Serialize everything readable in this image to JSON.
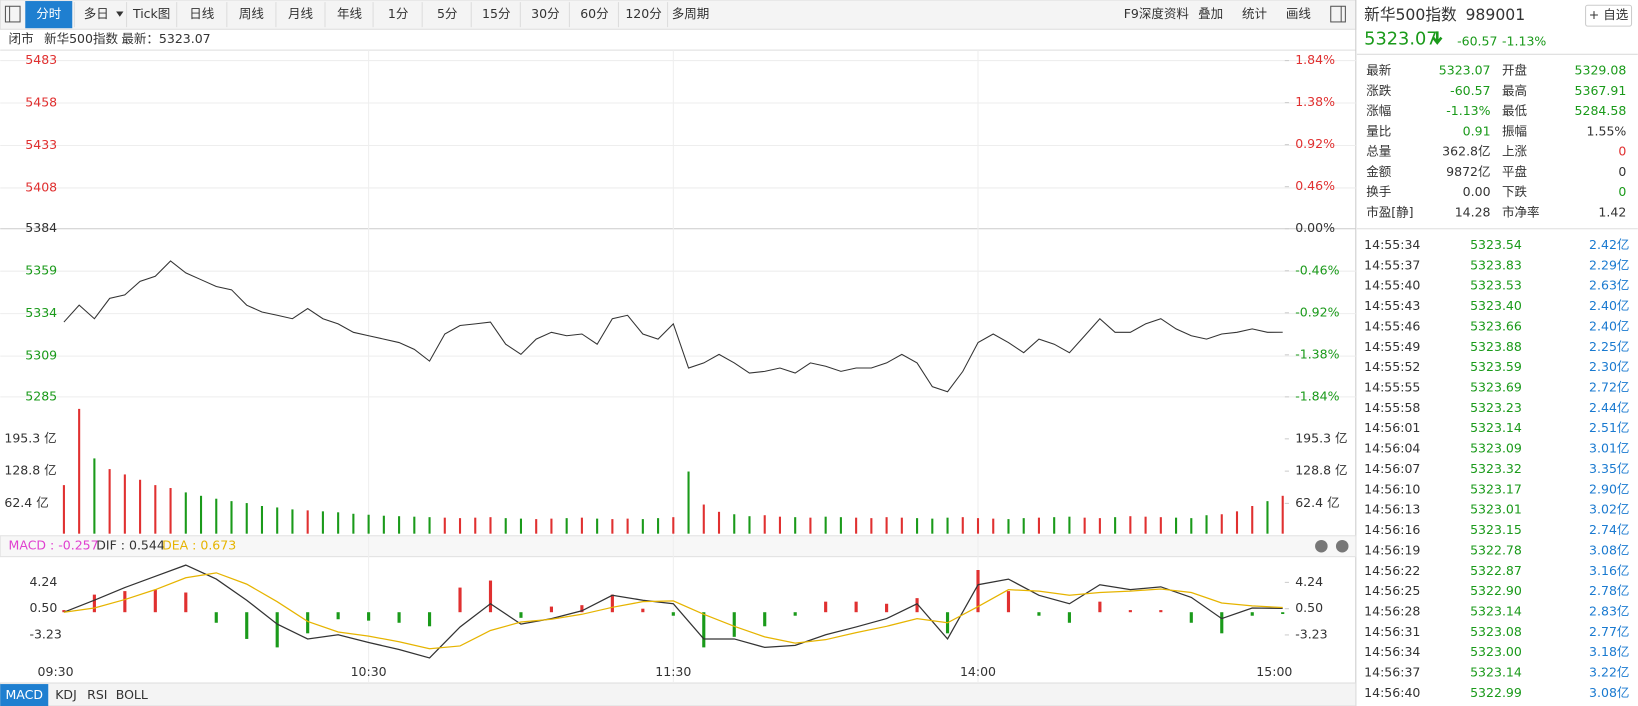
{
  "toolbar": {
    "tabs": [
      "分时",
      "多日",
      "Tick图",
      "日线",
      "周线",
      "月线",
      "年线",
      "1分",
      "5分",
      "15分",
      "30分",
      "60分",
      "120分",
      "多周期"
    ],
    "tools": [
      "F9深度资料",
      "叠加",
      "统计",
      "画线"
    ]
  },
  "status_bar": {
    "state": "闭市",
    "name": "新华500指数",
    "latest": "最新：5323.07"
  },
  "chart_data": [
    {
      "type": "line",
      "color": "#333333",
      "grid": true,
      "x": [
        0,
        3,
        6,
        9,
        12,
        15,
        18,
        21,
        24,
        27,
        30,
        33,
        36,
        39,
        42,
        45,
        48,
        51,
        54,
        57,
        60,
        63,
        66,
        69,
        72,
        75,
        78,
        81,
        84,
        87,
        90,
        93,
        96,
        99,
        102,
        105,
        108,
        111,
        114,
        117,
        120,
        123,
        126,
        129,
        132,
        135,
        138,
        141,
        144,
        147,
        150,
        153,
        156,
        159,
        162,
        165,
        168,
        171,
        174,
        177,
        180,
        183,
        186,
        189,
        192,
        195,
        198,
        201,
        204,
        207,
        210,
        213,
        216,
        219,
        222,
        225,
        228,
        231,
        234,
        237,
        240
      ],
      "values": [
        5329,
        5339,
        5331,
        5343,
        5345,
        5353,
        5356,
        5365,
        5358,
        5354,
        5350,
        5348,
        5339,
        5335,
        5333,
        5331,
        5337,
        5331,
        5328,
        5323,
        5321,
        5319,
        5317,
        5313,
        5306,
        5322,
        5327,
        5328,
        5329,
        5316,
        5310,
        5319,
        5323,
        5321,
        5322,
        5316,
        5331,
        5333,
        5322,
        5319,
        5328,
        5302,
        5305,
        5310,
        5305,
        5299,
        5300,
        5302,
        5299,
        5305,
        5303,
        5300,
        5302,
        5302,
        5305,
        5310,
        5305,
        5291,
        5288,
        5300,
        5317,
        5322,
        5317,
        5311,
        5319,
        5316,
        5311,
        5321,
        5331,
        5323,
        5323,
        5328,
        5331,
        5325,
        5321,
        5319,
        5322,
        5323,
        5325,
        5323,
        5323.07
      ],
      "xlim": [
        0,
        240
      ],
      "ylim": [
        5285,
        5483
      ],
      "yticks": [
        5285,
        5309,
        5334,
        5359,
        5384,
        5408,
        5433,
        5458,
        5483
      ],
      "y2lim": [
        -1.84,
        1.84
      ],
      "y2ticks": [
        {
          "value": -1.84,
          "label": "-1.84%"
        },
        {
          "value": -1.38,
          "label": "-1.38%"
        },
        {
          "value": -0.92,
          "label": "-0.92%"
        },
        {
          "value": -0.46,
          "label": "-0.46%"
        },
        {
          "value": 0,
          "label": "0.00%"
        },
        {
          "value": 0.46,
          "label": "0.46%"
        },
        {
          "value": 0.92,
          "label": "0.92%"
        },
        {
          "value": 1.38,
          "label": "1.38%"
        },
        {
          "value": 1.84,
          "label": "1.84%"
        }
      ]
    },
    {
      "type": "bar",
      "x": [
        0,
        3,
        6,
        9,
        12,
        15,
        18,
        21,
        24,
        27,
        30,
        33,
        36,
        39,
        42,
        45,
        48,
        51,
        54,
        57,
        60,
        63,
        66,
        69,
        72,
        75,
        78,
        81,
        84,
        87,
        90,
        93,
        96,
        99,
        102,
        105,
        108,
        111,
        114,
        117,
        120,
        123,
        126,
        129,
        132,
        135,
        138,
        141,
        144,
        147,
        150,
        153,
        156,
        159,
        162,
        165,
        168,
        171,
        174,
        177,
        180,
        183,
        186,
        189,
        192,
        195,
        198,
        201,
        204,
        207,
        210,
        213,
        216,
        219,
        222,
        225,
        228,
        231,
        234,
        237,
        240
      ],
      "values": [
        100,
        257,
        155,
        133,
        122,
        111,
        100,
        94,
        85,
        78,
        72,
        67,
        63,
        57,
        54,
        50,
        48,
        46,
        44,
        41,
        39,
        37,
        36,
        35,
        34,
        33,
        32,
        33,
        34,
        32,
        31,
        30,
        31,
        32,
        33,
        31,
        30,
        31,
        30,
        32,
        34,
        128,
        60,
        45,
        40,
        36,
        38,
        35,
        34,
        33,
        35,
        34,
        33,
        32,
        34,
        33,
        32,
        31,
        33,
        34,
        32,
        31,
        30,
        32,
        33,
        34,
        35,
        33,
        32,
        34,
        36,
        35,
        34,
        33,
        32,
        38,
        40,
        46,
        57,
        67,
        78
      ],
      "xlim": [
        0,
        240
      ],
      "ylim": [
        0,
        271
      ],
      "yticks": [
        {
          "value": 62.4,
          "label": "62.4 亿"
        },
        {
          "value": 128.8,
          "label": "128.8 亿"
        },
        {
          "value": 195.3,
          "label": "195.3 亿"
        }
      ]
    },
    {
      "type": "macd",
      "x": [
        0,
        6,
        12,
        18,
        24,
        30,
        36,
        42,
        48,
        54,
        60,
        66,
        72,
        78,
        84,
        90,
        96,
        102,
        108,
        114,
        120,
        126,
        132,
        138,
        144,
        150,
        156,
        162,
        168,
        174,
        180,
        186,
        192,
        198,
        204,
        210,
        216,
        222,
        228,
        234,
        240
      ],
      "series": [
        {
          "name": "MACD : -0.257",
          "color": "#e040d0",
          "values": [
            0.3,
            2.5,
            3.0,
            3.2,
            2.8,
            -1.5,
            -3.8,
            -5.0,
            -3.0,
            -1.0,
            -1.2,
            -1.5,
            -2.0,
            3.5,
            4.5,
            -0.8,
            0.8,
            1.0,
            2.5,
            0.5,
            -0.5,
            -5.0,
            -3.5,
            -2.0,
            -0.5,
            1.5,
            1.5,
            1.2,
            2.0,
            -3.0,
            6.0,
            3.0,
            -0.5,
            -1.5,
            1.5,
            0.3,
            0.3,
            -1.5,
            -3.0,
            -0.5,
            -0.257
          ]
        },
        {
          "name": "DIF : 0.544",
          "color": "#333333",
          "values": [
            0,
            1.7,
            3.5,
            5.1,
            6.7,
            4.7,
            1.7,
            -1.7,
            -3.8,
            -3.2,
            -4.3,
            -5.3,
            -6.5,
            -2.1,
            1.2,
            -1.7,
            -0.9,
            0.2,
            2.4,
            1.7,
            1.2,
            -3.8,
            -3.8,
            -5.0,
            -4.7,
            -3.2,
            -2.1,
            -0.9,
            1.2,
            -3.8,
            3.9,
            4.7,
            2.4,
            1.2,
            3.9,
            3.2,
            3.6,
            2.1,
            -0.9,
            0.6,
            0.544
          ]
        },
        {
          "name": "DEA : 0.673",
          "color": "#e6b400",
          "values": [
            0,
            0.6,
            1.8,
            3.2,
            4.9,
            5.6,
            4.0,
            1.5,
            -1.3,
            -2.8,
            -3.4,
            -4.2,
            -5.2,
            -4.8,
            -2.6,
            -1.4,
            -1.0,
            -0.3,
            0.7,
            1.5,
            1.6,
            -0.3,
            -2.0,
            -3.5,
            -4.4,
            -3.9,
            -2.9,
            -2.0,
            -0.9,
            -1.5,
            0.8,
            3.2,
            3.0,
            2.4,
            2.8,
            3.0,
            3.3,
            2.8,
            1.3,
            0.9,
            0.673
          ]
        }
      ],
      "xlim": [
        0,
        240
      ],
      "ylim": [
        -6.8,
        7.6
      ],
      "yticks": [
        -3.23,
        {
          "value": 0.5,
          "label": "0.50"
        },
        4.24
      ],
      "xticks": [
        {
          "value": 0,
          "label": "09:30"
        },
        {
          "value": 60,
          "label": "10:30"
        },
        {
          "value": 120,
          "label": "11:30"
        },
        {
          "value": 180,
          "label": "14:00"
        },
        {
          "value": 240,
          "label": "15:00"
        }
      ]
    }
  ],
  "indicator_tabs": [
    "MACD",
    "KDJ",
    "RSI",
    "BOLL"
  ],
  "quote": {
    "name": "新华500指数",
    "code": "989001",
    "watch": "+ 自选",
    "price": "5323.07",
    "change": "-60.57",
    "change_pct": "-1.13%",
    "stats": [
      [
        "最新",
        "5323.07",
        "开盘",
        "5329.08"
      ],
      [
        "涨跌",
        "-60.57",
        "最高",
        "5367.91"
      ],
      [
        "涨幅",
        "-1.13%",
        "最低",
        "5284.58"
      ],
      [
        "量比",
        "0.91",
        "振幅",
        "1.55%"
      ],
      [
        "总量",
        "362.8亿",
        "上涨",
        "0"
      ],
      [
        "金额",
        "9872亿",
        "平盘",
        "0"
      ],
      [
        "换手",
        "0.00",
        "下跌",
        "0"
      ],
      [
        "市盈[静]",
        "14.28",
        "市净率",
        "1.42"
      ]
    ]
  },
  "trades": {
    "rows": [
      [
        "14:55:34",
        "5323.54",
        "2.42亿"
      ],
      [
        "14:55:37",
        "5323.83",
        "2.29亿"
      ],
      [
        "14:55:40",
        "5323.53",
        "2.63亿"
      ],
      [
        "14:55:43",
        "5323.40",
        "2.40亿"
      ],
      [
        "14:55:46",
        "5323.66",
        "2.40亿"
      ],
      [
        "14:55:49",
        "5323.88",
        "2.25亿"
      ],
      [
        "14:55:52",
        "5323.59",
        "2.30亿"
      ],
      [
        "14:55:55",
        "5323.69",
        "2.72亿"
      ],
      [
        "14:55:58",
        "5323.23",
        "2.44亿"
      ],
      [
        "14:56:01",
        "5323.14",
        "2.51亿"
      ],
      [
        "14:56:04",
        "5323.09",
        "3.01亿"
      ],
      [
        "14:56:07",
        "5323.32",
        "3.35亿"
      ],
      [
        "14:56:10",
        "5323.17",
        "2.90亿"
      ],
      [
        "14:56:13",
        "5323.01",
        "3.02亿"
      ],
      [
        "14:56:16",
        "5323.15",
        "2.74亿"
      ],
      [
        "14:56:19",
        "5322.78",
        "3.08亿"
      ],
      [
        "14:56:22",
        "5322.87",
        "3.16亿"
      ],
      [
        "14:56:25",
        "5322.90",
        "2.78亿"
      ],
      [
        "14:56:28",
        "5323.14",
        "2.83亿"
      ],
      [
        "14:56:31",
        "5323.08",
        "2.77亿"
      ],
      [
        "14:56:34",
        "5323.00",
        "3.18亿"
      ],
      [
        "14:56:37",
        "5323.14",
        "3.22亿"
      ],
      [
        "14:56:40",
        "5322.99",
        "3.08亿"
      ]
    ]
  }
}
